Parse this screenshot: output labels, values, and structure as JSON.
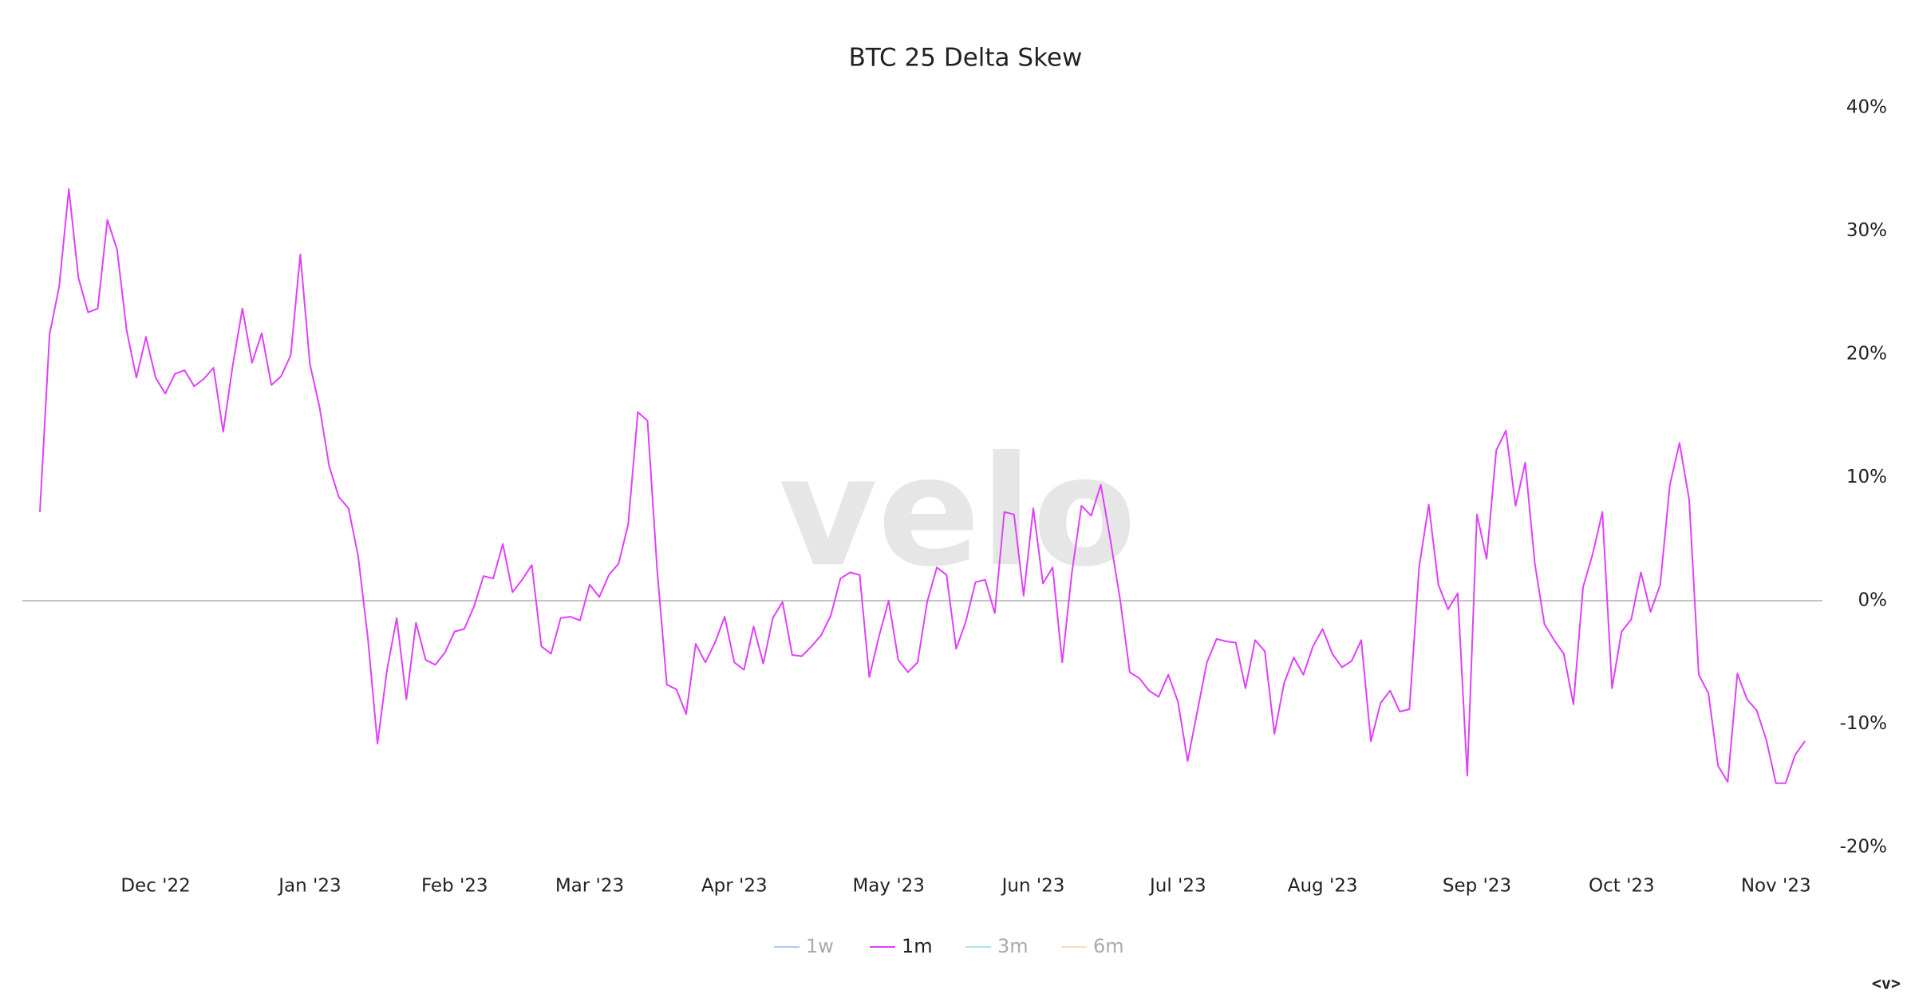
{
  "chart_data": {
    "type": "line",
    "title": "BTC 25 Delta Skew",
    "watermark": "velo",
    "corner_mark": "<v>",
    "categories": [
      null,
      null,
      null,
      null,
      null,
      null,
      null,
      null,
      null,
      null,
      null,
      null,
      "Dec '22",
      null,
      null,
      null,
      null,
      null,
      null,
      null,
      null,
      null,
      null,
      null,
      null,
      null,
      null,
      null,
      "Jan '23",
      null,
      null,
      null,
      null,
      null,
      null,
      null,
      null,
      null,
      null,
      null,
      null,
      null,
      null,
      "Feb '23",
      null,
      null,
      null,
      null,
      null,
      null,
      null,
      null,
      null,
      null,
      null,
      null,
      null,
      "Mar '23",
      null,
      null,
      null,
      null,
      null,
      null,
      null,
      null,
      null,
      null,
      null,
      null,
      null,
      null,
      "Apr '23",
      null,
      null,
      null,
      null,
      null,
      null,
      null,
      null,
      null,
      null,
      null,
      null,
      null,
      null,
      null,
      "May '23",
      null,
      null,
      null,
      null,
      null,
      null,
      null,
      null,
      null,
      null,
      null,
      null,
      null,
      null,
      "Jun '23",
      null,
      null,
      null,
      null,
      null,
      null,
      null,
      null,
      null,
      null,
      null,
      null,
      null,
      null,
      "Jul '23",
      null,
      null,
      null,
      null,
      null,
      null,
      null,
      null,
      null,
      null,
      null,
      null,
      null,
      null,
      "Aug '23",
      null,
      null,
      null,
      null,
      null,
      null,
      null,
      null,
      null,
      null,
      null,
      null,
      null,
      null,
      null,
      "Sep '23",
      null,
      null,
      null,
      null,
      null,
      null,
      null,
      null,
      null,
      null,
      null,
      null,
      null,
      null,
      "Oct '23",
      null,
      null,
      null,
      null,
      null,
      null,
      null,
      null,
      null,
      null,
      null,
      null,
      null,
      null,
      null,
      "Nov '23",
      null,
      null,
      null
    ],
    "series": [
      {
        "name": "1w",
        "color": "#7fa2f0",
        "hidden": true
      },
      {
        "name": "1m",
        "color": "#e040fb",
        "hidden": false,
        "values": [
          7.2,
          21.6,
          25.5,
          33.4,
          26.2,
          23.4,
          23.7,
          30.9,
          28.5,
          21.9,
          18.1,
          21.4,
          18.1,
          16.8,
          18.4,
          18.7,
          17.4,
          18.0,
          18.9,
          13.7,
          19.1,
          23.7,
          19.3,
          21.7,
          17.5,
          18.2,
          19.9,
          28.1,
          19.2,
          15.7,
          10.9,
          8.4,
          7.5,
          3.6,
          -3.0,
          -11.6,
          -5.6,
          -1.4,
          -8.0,
          -1.8,
          -4.8,
          -5.2,
          -4.2,
          -2.5,
          -2.3,
          -0.5,
          2.0,
          1.8,
          4.6,
          0.7,
          1.7,
          2.9,
          -3.7,
          -4.3,
          -1.4,
          -1.3,
          -1.6,
          1.3,
          0.3,
          2.1,
          3.0,
          6.2,
          15.3,
          14.6,
          2.5,
          -6.8,
          -7.2,
          -9.2,
          -3.5,
          -5.0,
          -3.4,
          -1.3,
          -5.0,
          -5.6,
          -2.1,
          -5.1,
          -1.4,
          -0.1,
          -4.4,
          -4.5,
          -3.7,
          -2.8,
          -1.2,
          1.8,
          2.3,
          2.1,
          -6.2,
          -2.9,
          0.0,
          -4.8,
          -5.8,
          -5.0,
          -0.1,
          2.7,
          2.1,
          -3.9,
          -1.7,
          1.5,
          1.7,
          -1.0,
          7.2,
          7.0,
          0.4,
          7.5,
          1.4,
          2.7,
          -5.0,
          2.3,
          7.7,
          6.9,
          9.4,
          4.9,
          0.1,
          -5.8,
          -6.3,
          -7.3,
          -7.8,
          -6.0,
          -8.2,
          -13.0,
          -9.0,
          -5.0,
          -3.1,
          -3.3,
          -3.4,
          -7.1,
          -3.2,
          -4.1,
          -10.8,
          -6.7,
          -4.6,
          -6.0,
          -3.7,
          -2.3,
          -4.3,
          -5.4,
          -4.9,
          -3.2,
          -11.4,
          -8.3,
          -7.3,
          -9.0,
          -8.8,
          2.7,
          7.8,
          1.3,
          -0.7,
          0.6,
          -14.2,
          7.0,
          3.4,
          12.2,
          13.8,
          7.7,
          11.2,
          3.0,
          -1.9,
          -3.2,
          -4.3,
          -8.4,
          1.1,
          3.8,
          7.2,
          -7.1,
          -2.5,
          -1.5,
          2.3,
          -0.9,
          1.3,
          9.4,
          12.8,
          8.2,
          -6.0,
          -7.5,
          -13.4,
          -14.7,
          -5.9,
          -8.0,
          -8.9,
          -11.3,
          -14.8,
          -14.8,
          -12.5,
          -11.4
        ]
      },
      {
        "name": "3m",
        "color": "#6fd8d8",
        "hidden": true
      },
      {
        "name": "6m",
        "color": "#f5c98a",
        "hidden": true
      }
    ],
    "ylim": [
      -20,
      40
    ],
    "yticks": [
      {
        "value": -20,
        "label": "-20%"
      },
      {
        "value": -10,
        "label": "-10%"
      },
      {
        "value": 0,
        "label": "0%"
      },
      {
        "value": 10,
        "label": "10%"
      },
      {
        "value": 20,
        "label": "20%"
      },
      {
        "value": 30,
        "label": "30%"
      },
      {
        "value": 40,
        "label": "40%"
      }
    ],
    "y_axis_side": "right",
    "zero_line": true,
    "legend": "bottom"
  }
}
